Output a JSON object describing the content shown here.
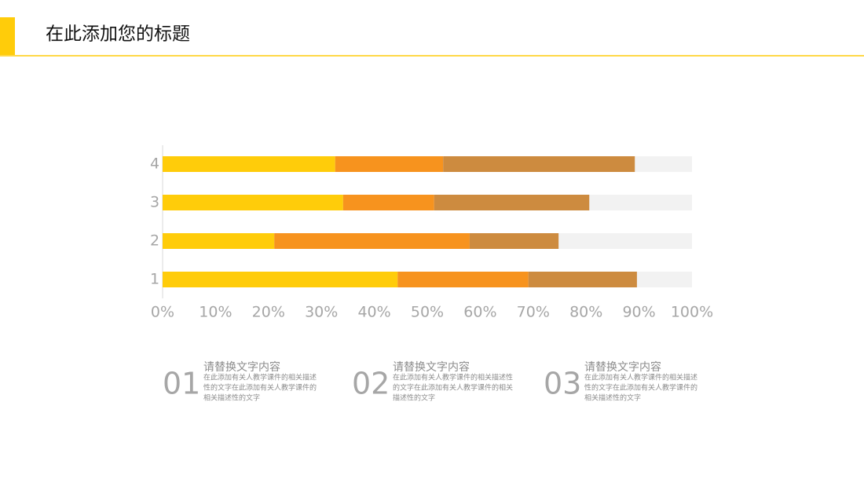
{
  "header": {
    "title": "在此添加您的标题"
  },
  "chart_data": {
    "type": "bar",
    "orientation": "horizontal",
    "stacked": true,
    "categories": [
      "1",
      "2",
      "3",
      "4"
    ],
    "series": [
      {
        "color": "#FFCC0A",
        "values": [
          44.4,
          21.1,
          34.1,
          32.6
        ]
      },
      {
        "color": "#F7931E",
        "values": [
          24.7,
          36.9,
          17.2,
          20.4
        ]
      },
      {
        "color": "#CD8B3F",
        "values": [
          20.5,
          16.8,
          29.3,
          36.2
        ]
      }
    ],
    "track_color": "#F2F2F2",
    "xlim": [
      0,
      100
    ],
    "xticks": [
      {
        "value": 0,
        "label": "0%"
      },
      {
        "value": 10,
        "label": "10%"
      },
      {
        "value": 20,
        "label": "20%"
      },
      {
        "value": 30,
        "label": "30%"
      },
      {
        "value": 40,
        "label": "40%"
      },
      {
        "value": 50,
        "label": "50%"
      },
      {
        "value": 60,
        "label": "60%"
      },
      {
        "value": 70,
        "label": "70%"
      },
      {
        "value": 80,
        "label": "80%"
      },
      {
        "value": 90,
        "label": "90%"
      },
      {
        "value": 100,
        "label": "100%"
      }
    ]
  },
  "items": [
    {
      "number": "01",
      "heading": "请替换文字内容",
      "lines": [
        "在此添加有关人教学课件的相关描述",
        "性的文字在此添加有关人教学课件的",
        "相关描述性的文字"
      ]
    },
    {
      "number": "02",
      "heading": "请替换文字内容",
      "lines": [
        "在此添加有关人教学课件的相关描述性",
        "的文字在此添加有关人教学课件的相关",
        "描述性的文字"
      ]
    },
    {
      "number": "03",
      "heading": "请替换文字内容",
      "lines": [
        "在此添加有关人教学课件的相关描述",
        "性的文字在此添加有关人教学课件的",
        "相关描述性的文字"
      ]
    }
  ]
}
